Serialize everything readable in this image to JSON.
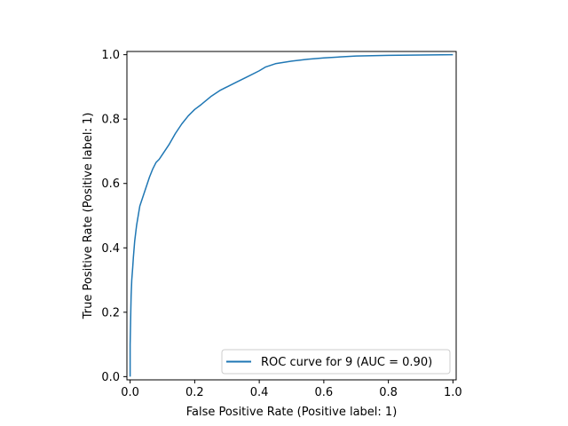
{
  "colors": {
    "series": "#1f77b4",
    "axis": "#000000",
    "background": "#ffffff"
  },
  "chart_data": {
    "type": "line",
    "title": "",
    "xlabel": "False Positive Rate (Positive label: 1)",
    "ylabel": "True Positive Rate (Positive label: 1)",
    "xlim": [
      -0.01,
      1.01
    ],
    "ylim": [
      -0.01,
      1.01
    ],
    "xticks": [
      0.0,
      0.2,
      0.4,
      0.6,
      0.8,
      1.0
    ],
    "xtick_labels": [
      "0.0",
      "0.2",
      "0.4",
      "0.6",
      "0.8",
      "1.0"
    ],
    "yticks": [
      0.0,
      0.2,
      0.4,
      0.6,
      0.8,
      1.0
    ],
    "ytick_labels": [
      "0.0",
      "0.2",
      "0.4",
      "0.6",
      "0.8",
      "1.0"
    ],
    "grid": false,
    "legend_position": "lower-right",
    "series": [
      {
        "name": "ROC curve for 9 (AUC = 0.90)",
        "x": [
          0.0,
          0.0,
          0.002,
          0.003,
          0.005,
          0.008,
          0.01,
          0.014,
          0.02,
          0.025,
          0.03,
          0.04,
          0.05,
          0.06,
          0.07,
          0.08,
          0.09,
          0.1,
          0.12,
          0.14,
          0.16,
          0.18,
          0.2,
          0.22,
          0.25,
          0.28,
          0.3,
          0.33,
          0.36,
          0.4,
          0.42,
          0.45,
          0.5,
          0.55,
          0.6,
          0.65,
          0.7,
          0.8,
          0.9,
          1.0
        ],
        "y": [
          0.0,
          0.1,
          0.2,
          0.25,
          0.3,
          0.34,
          0.37,
          0.42,
          0.47,
          0.5,
          0.53,
          0.56,
          0.59,
          0.62,
          0.645,
          0.665,
          0.675,
          0.69,
          0.72,
          0.755,
          0.785,
          0.81,
          0.83,
          0.845,
          0.87,
          0.89,
          0.9,
          0.915,
          0.93,
          0.95,
          0.962,
          0.972,
          0.98,
          0.986,
          0.99,
          0.993,
          0.996,
          0.998,
          0.999,
          1.0
        ]
      }
    ]
  }
}
